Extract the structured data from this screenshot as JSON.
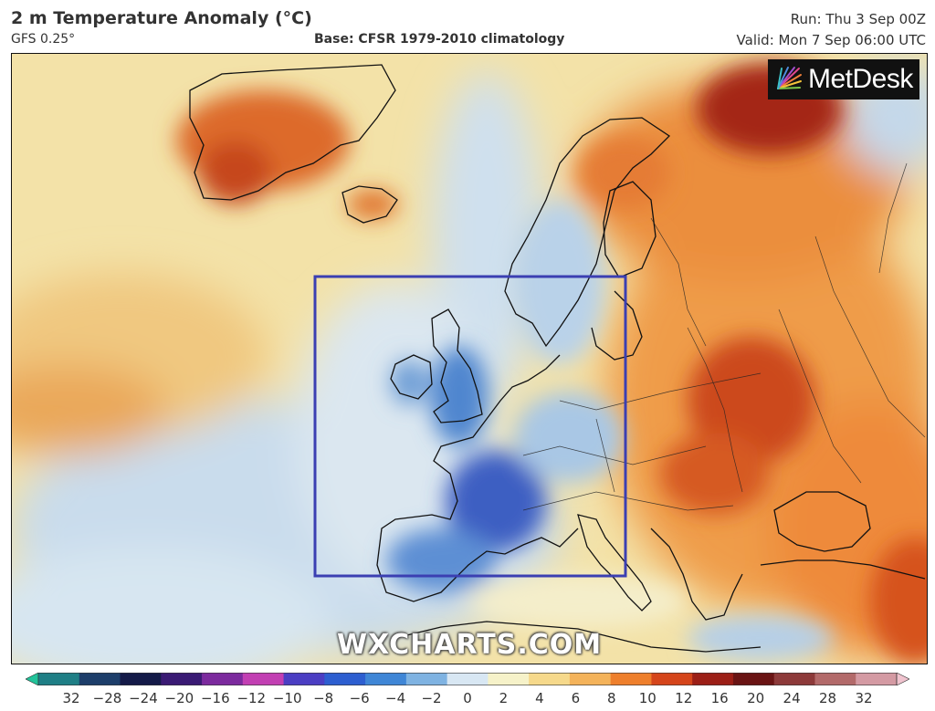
{
  "header": {
    "title": "2 m Temperature Anomaly (°C)",
    "model": "GFS 0.25°",
    "base": "Base: CFSR 1979-2010 climatology",
    "run": "Run: Thu 3 Sep 00Z",
    "valid": "Valid: Mon 7 Sep 06:00 UTC"
  },
  "logo": {
    "text": "MetDesk",
    "icon": "starburst-logo-icon"
  },
  "watermark": "WXCHARTS.COM",
  "colorbar": {
    "ticks": [
      "32",
      "−28",
      "−24",
      "−20",
      "−16",
      "−12",
      "−10",
      "−8",
      "−6",
      "−4",
      "−2",
      "0",
      "2",
      "4",
      "6",
      "8",
      "10",
      "12",
      "16",
      "20",
      "24",
      "28",
      "32"
    ],
    "colors": [
      "#22c39a",
      "#1f7f86",
      "#1d3e6a",
      "#141a48",
      "#3a1a74",
      "#7c2a9e",
      "#c23fb3",
      "#4b3ec3",
      "#2d5ed0",
      "#3f86d6",
      "#7fb3e2",
      "#d8e7f3",
      "#f6f2c9",
      "#f6d98b",
      "#f4b35a",
      "#ee7f2c",
      "#d5451b",
      "#9c1f17",
      "#6a1414",
      "#8d3a3a",
      "#b36a6a",
      "#d49aa3",
      "#f0c3ce"
    ]
  },
  "highlight_box": {
    "color": "#3b3fb2"
  }
}
